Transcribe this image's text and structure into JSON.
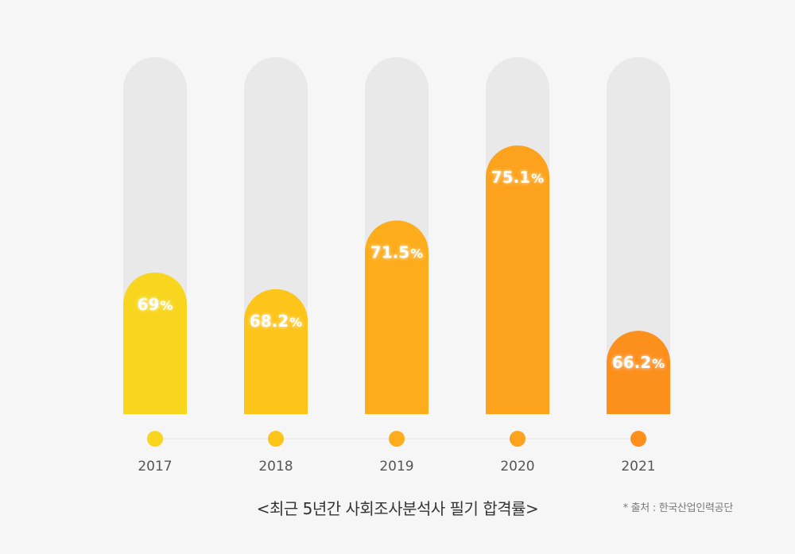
{
  "chart_data": {
    "type": "bar",
    "categories": [
      "2017",
      "2018",
      "2019",
      "2020",
      "2021"
    ],
    "values": [
      69,
      68.2,
      71.5,
      75.1,
      66.2
    ],
    "value_labels": [
      "69",
      "68.2",
      "71.5",
      "75.1",
      "66.2"
    ],
    "value_suffix": "%",
    "title": "<최근 5년간 사회조사분석사 필기 합격률>",
    "source": "* 출처 : 한국산업인력공단",
    "xlabel": "",
    "ylabel": "",
    "grid": false,
    "legend": "none",
    "colors": [
      "#f8d51e",
      "#fdc41a",
      "#fdac1c",
      "#fca21d",
      "#fd8f1d"
    ],
    "track_color": "#e9e9e9",
    "baseline_color": "#eeeeee"
  }
}
